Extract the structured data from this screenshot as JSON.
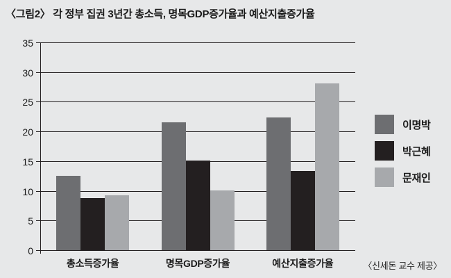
{
  "title": "〈그림2〉 각 정부 집권 3년간 총소득, 명목GDP증가율과 예산지출증가율",
  "credit": "〈신세돈 교수 제공〉",
  "colors": {
    "background": "#e7e8e9",
    "axis": "#231f20",
    "text": "#1a1a1a"
  },
  "chart_data": {
    "type": "bar",
    "categories": [
      "총소득증가율",
      "명목GDP증가율",
      "예산지출증가율"
    ],
    "series": [
      {
        "name": "이명박",
        "color": "#6d6e71",
        "values": [
          12.6,
          21.6,
          22.4
        ]
      },
      {
        "name": "박근혜",
        "color": "#231f20",
        "values": [
          8.8,
          15.2,
          13.4
        ]
      },
      {
        "name": "문재인",
        "color": "#a7a9ac",
        "values": [
          9.3,
          10.1,
          28.2
        ]
      }
    ],
    "ylim": [
      0,
      35
    ],
    "ytick_step": 5,
    "grid": true,
    "legend_position": "right",
    "xlabel": "",
    "ylabel": ""
  }
}
